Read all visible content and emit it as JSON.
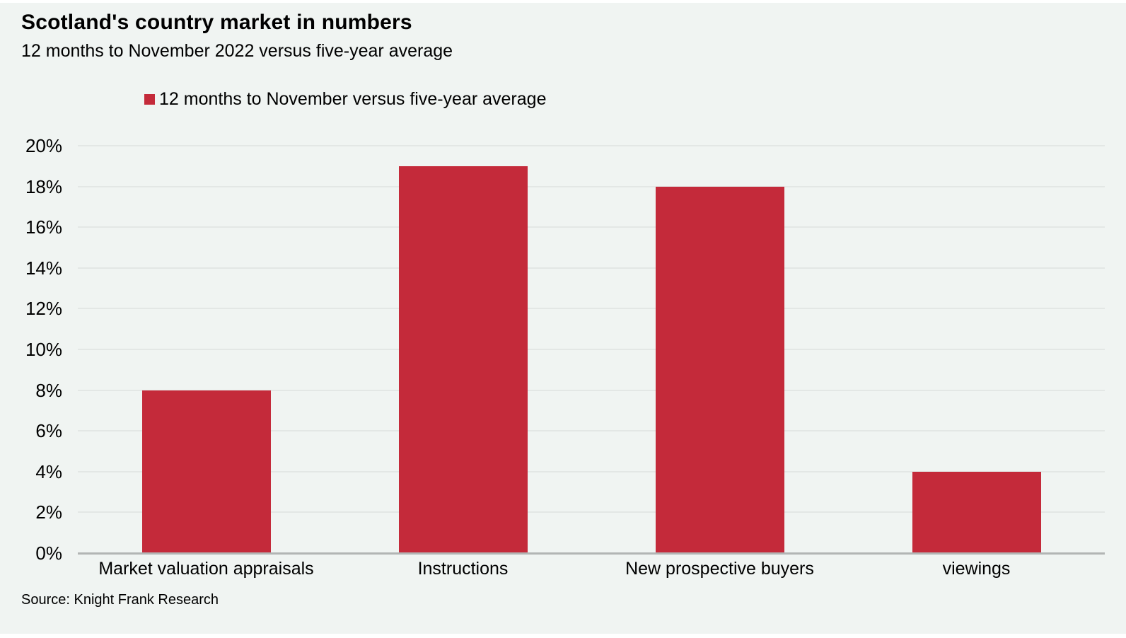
{
  "colors": {
    "background": "#f0f4f2",
    "bar": "#c42a3a",
    "gridline": "#e3e7e5",
    "axis_line": "#b2b5b4",
    "text": "#000000"
  },
  "legend": {
    "label": "12 months to November versus five-year average"
  },
  "chart_data": {
    "type": "bar",
    "title": "Scotland's country market in numbers",
    "subtitle": "12 months to November 2022 versus five-year average",
    "categories": [
      "Market valuation appraisals",
      "Instructions",
      "New prospective buyers",
      "viewings"
    ],
    "values": [
      8,
      19,
      18,
      4
    ],
    "series_name": "12 months to November versus five-year average",
    "xlabel": "",
    "ylabel": "",
    "ylim": [
      0,
      20
    ],
    "ytick_step": 2,
    "ytick_labels": [
      "0%",
      "2%",
      "4%",
      "6%",
      "8%",
      "10%",
      "12%",
      "14%",
      "16%",
      "18%",
      "20%"
    ],
    "grid": "horizontal",
    "legend_position": "top-left",
    "bar_color": "#c42a3a",
    "source": "Source: Knight Frank Research"
  }
}
